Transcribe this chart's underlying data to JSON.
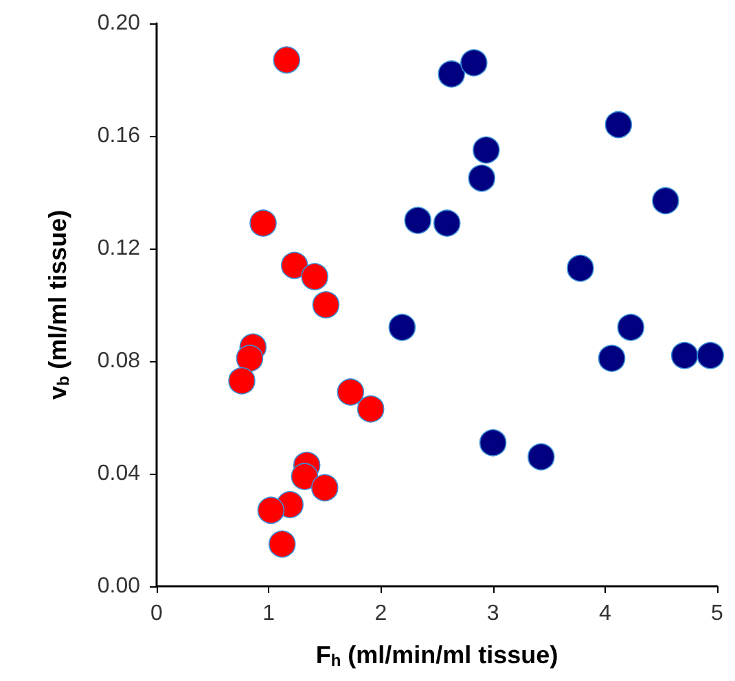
{
  "chart_data": {
    "type": "scatter",
    "xlabel": "F$_{h}$ (ml/min/ml tissue)",
    "ylabel": "v$_{b}$ (ml/ml tissue)",
    "xlim": [
      0,
      5
    ],
    "xticks": [
      0,
      1,
      2,
      3,
      4,
      5
    ],
    "ylim": [
      0,
      0.2
    ],
    "yticks": [
      {
        "value": 0,
        "label": "0.00"
      },
      {
        "value": 0.04,
        "label": "0.04"
      },
      {
        "value": 0.08,
        "label": "0.08"
      },
      {
        "value": 0.12,
        "label": "0.12"
      },
      {
        "value": 0.16,
        "label": "0.16"
      },
      {
        "value": 0.2,
        "label": "0.20"
      }
    ],
    "grid": false,
    "marker": "circle",
    "series": [
      {
        "color": "#ff0000",
        "x": [
          1.16,
          0.95,
          1.23,
          1.41,
          1.51,
          0.86,
          0.83,
          0.76,
          1.73,
          1.91,
          1.34,
          1.32,
          1.5,
          1.19,
          1.02,
          1.12
        ],
        "values": [
          0.187,
          0.129,
          0.114,
          0.11,
          0.1,
          0.085,
          0.081,
          0.073,
          0.069,
          0.063,
          0.043,
          0.039,
          0.035,
          0.029,
          0.027,
          0.015
        ]
      },
      {
        "color": "#000080",
        "x": [
          2.63,
          2.83,
          4.12,
          2.94,
          2.9,
          4.54,
          2.33,
          2.59,
          3.78,
          2.19,
          4.23,
          4.06,
          4.71,
          4.94,
          3.0,
          3.43
        ],
        "values": [
          0.182,
          0.186,
          0.164,
          0.155,
          0.145,
          0.137,
          0.13,
          0.129,
          0.113,
          0.092,
          0.092,
          0.081,
          0.082,
          0.082,
          0.051,
          0.046
        ]
      }
    ]
  }
}
